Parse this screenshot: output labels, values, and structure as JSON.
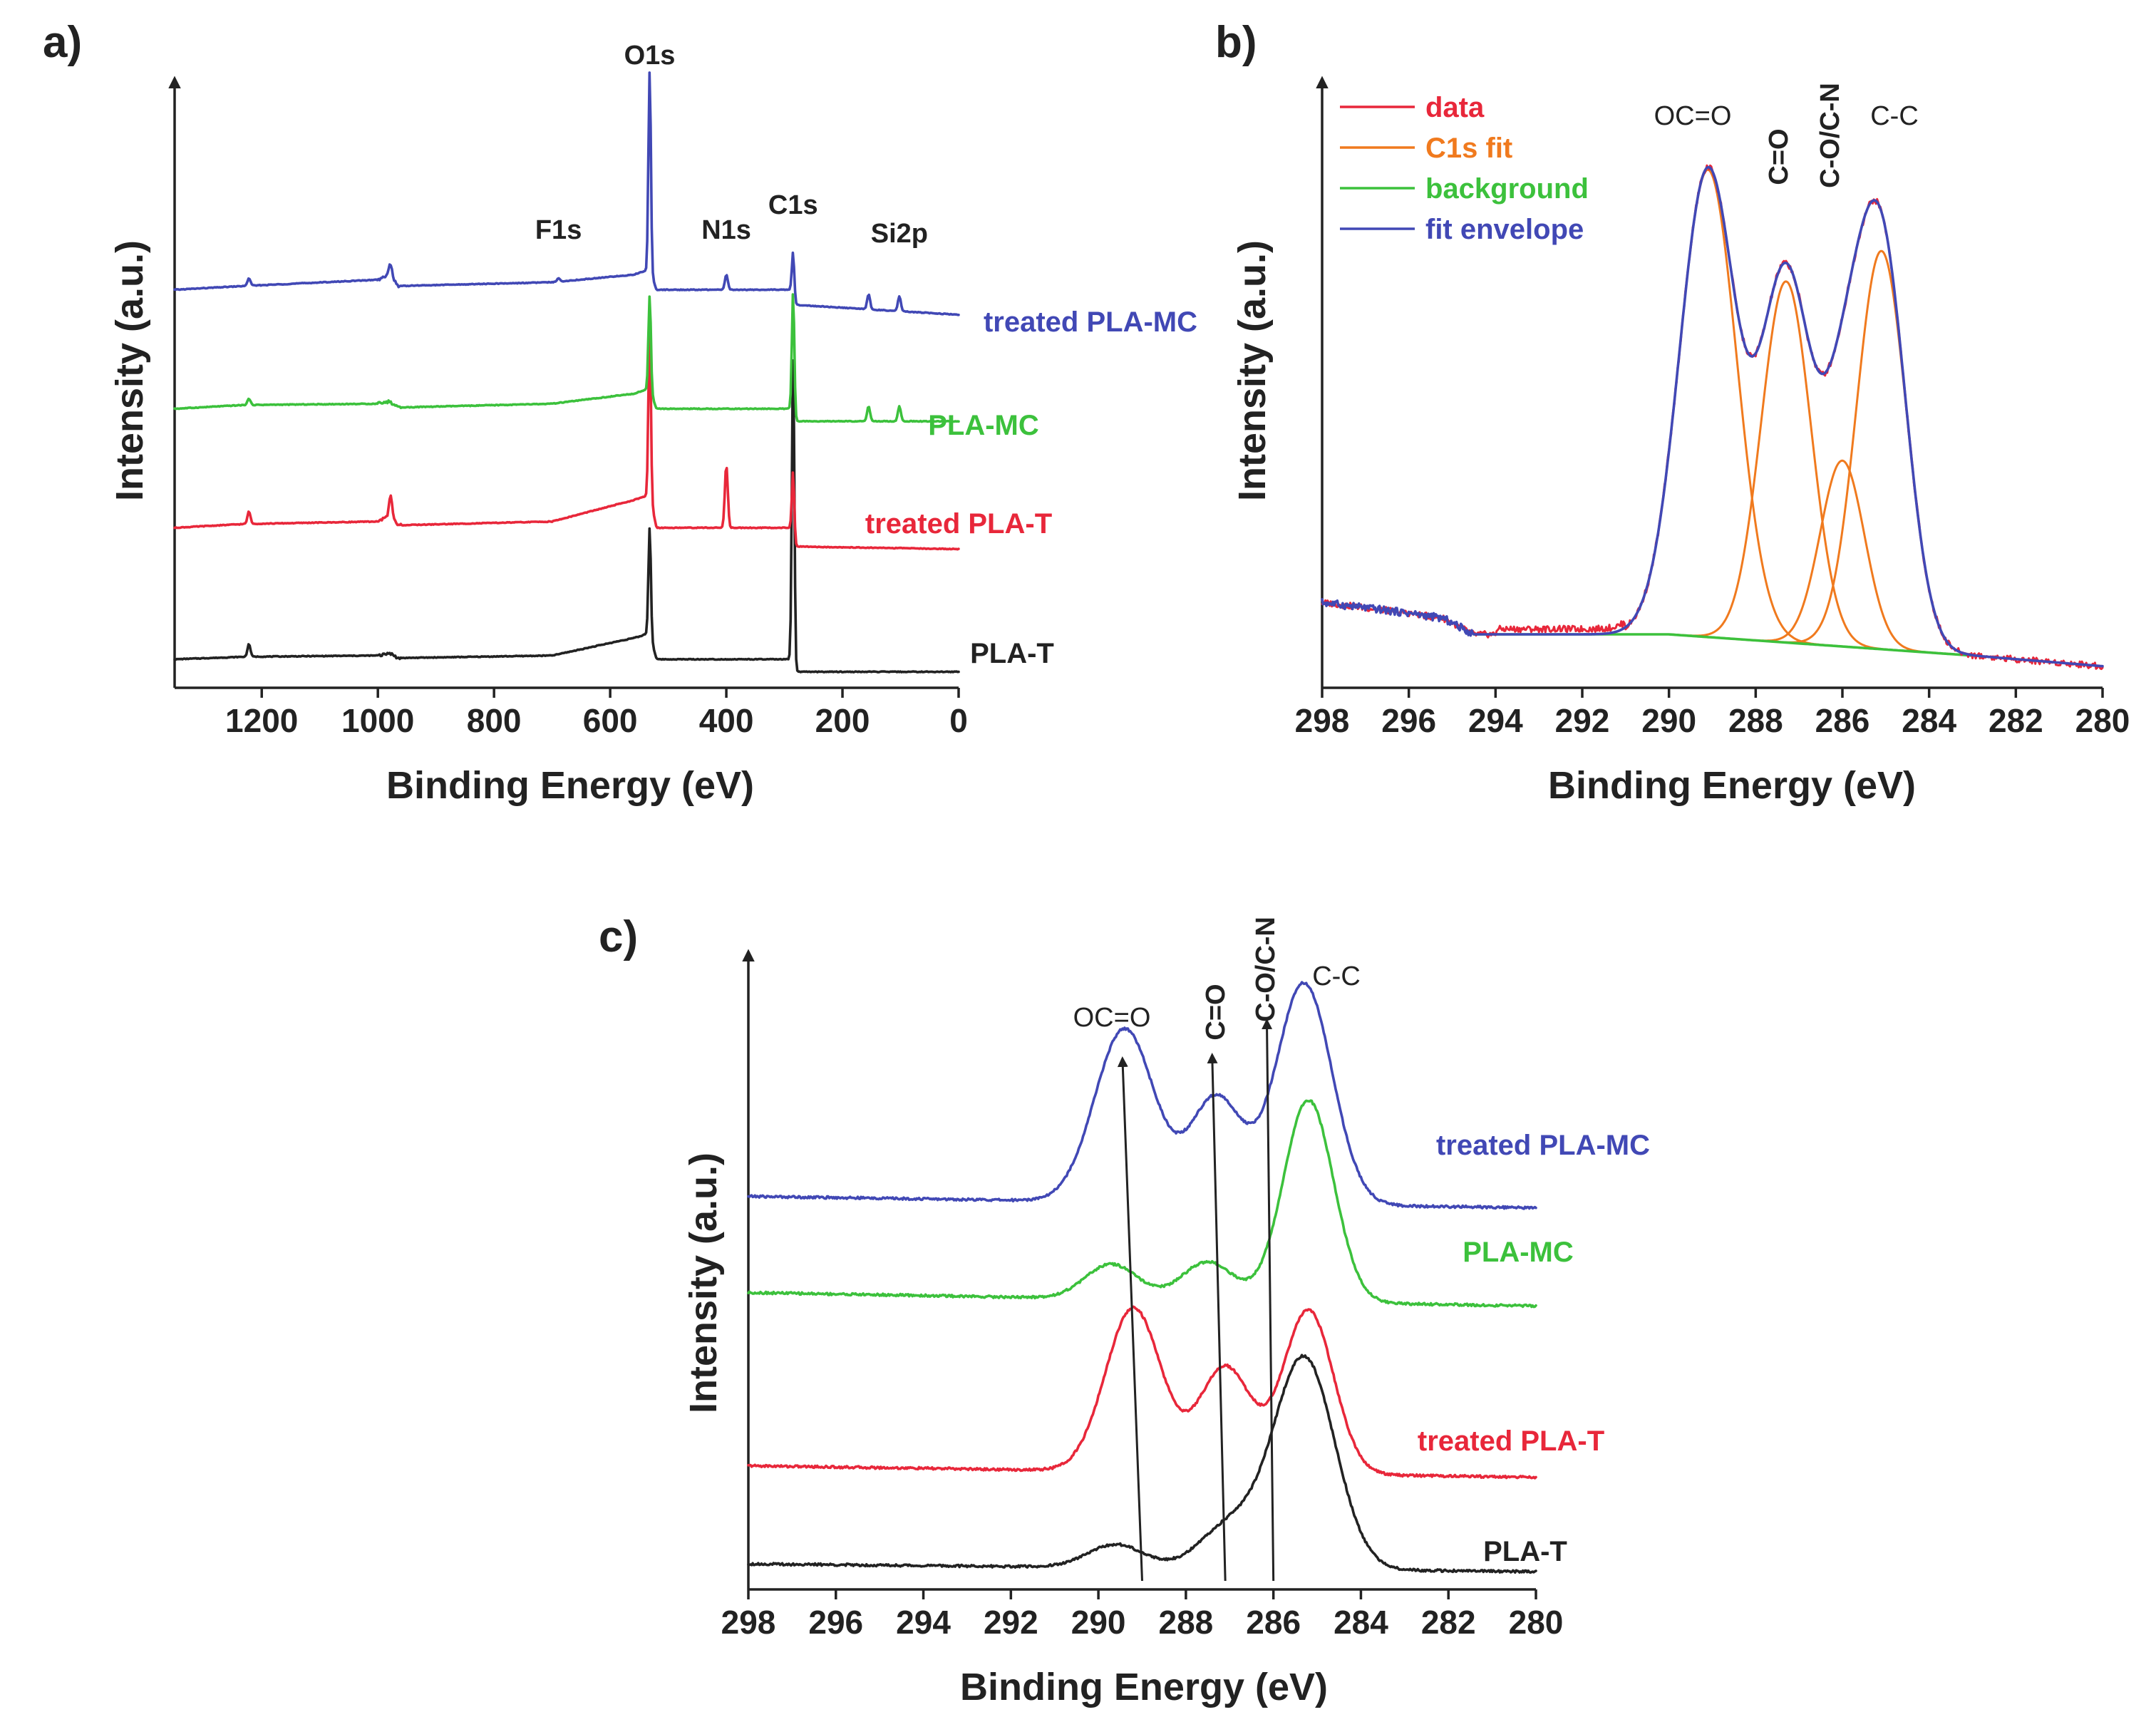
{
  "colors": {
    "pla_t": "#222222",
    "treated_pla_t": "#e8273a",
    "pla_mc": "#3cc13c",
    "treated_pla_mc": "#4148b5",
    "c1s_fit": "#f07a1e",
    "background": "#3cc13c",
    "fit_envelope": "#4148b5",
    "data": "#e8273a"
  },
  "chart_data": [
    {
      "id": "a",
      "panel_label": "a)",
      "type": "line",
      "title": "",
      "xlabel": "Binding Energy (eV)",
      "ylabel": "Intensity (a.u.)",
      "xlim": [
        1350,
        0
      ],
      "xticks": [
        "1200",
        "1000",
        "800",
        "600",
        "400",
        "200",
        "0"
      ],
      "peak_labels": [
        {
          "text": "O1s",
          "x": 532
        },
        {
          "text": "F1s",
          "x": 689
        },
        {
          "text": "N1s",
          "x": 400
        },
        {
          "text": "C1s",
          "x": 285
        },
        {
          "text": "Si2p",
          "x": 102
        }
      ],
      "series": [
        {
          "name": "PLA-T",
          "offset": 0.0,
          "end": 0.0,
          "baseline": [
            [
              1350,
              0.0
            ],
            [
              1230,
              0.02
            ],
            [
              1000,
              0.03
            ],
            [
              980,
              0.05
            ],
            [
              965,
              0.01
            ],
            [
              700,
              0.03
            ],
            [
              550,
              0.18
            ],
            [
              540,
              0.2
            ],
            [
              532,
              0.2
            ],
            [
              520,
              0.0
            ],
            [
              300,
              0.0
            ],
            [
              290,
              0.0
            ],
            [
              283,
              -0.1
            ],
            [
              0,
              -0.1
            ]
          ],
          "peaks": [
            [
              1222,
              0.1
            ],
            [
              532,
              0.85
            ],
            [
              285,
              2.5
            ]
          ]
        },
        {
          "name": "treated PLA-T",
          "offset": 1.05,
          "end": 0.0,
          "baseline": [
            [
              1350,
              0.0
            ],
            [
              1230,
              0.03
            ],
            [
              1000,
              0.05
            ],
            [
              980,
              0.1
            ],
            [
              965,
              0.02
            ],
            [
              700,
              0.05
            ],
            [
              560,
              0.22
            ],
            [
              540,
              0.25
            ],
            [
              532,
              0.25
            ],
            [
              520,
              0.0
            ],
            [
              300,
              0.0
            ],
            [
              290,
              0.0
            ],
            [
              283,
              -0.15
            ],
            [
              0,
              -0.17
            ]
          ],
          "peaks": [
            [
              1222,
              0.1
            ],
            [
              978,
              0.16
            ],
            [
              532,
              1.35
            ],
            [
              400,
              0.5
            ],
            [
              285,
              0.55
            ]
          ]
        },
        {
          "name": "PLA-MC",
          "offset": 2.0,
          "end": 0.0,
          "baseline": [
            [
              1350,
              0.0
            ],
            [
              1230,
              0.03
            ],
            [
              1000,
              0.04
            ],
            [
              980,
              0.06
            ],
            [
              965,
              0.01
            ],
            [
              700,
              0.04
            ],
            [
              560,
              0.12
            ],
            [
              540,
              0.15
            ],
            [
              532,
              0.15
            ],
            [
              520,
              0.0
            ],
            [
              300,
              0.0
            ],
            [
              290,
              0.0
            ],
            [
              283,
              -0.1
            ],
            [
              0,
              -0.1
            ]
          ],
          "peaks": [
            [
              1222,
              0.05
            ],
            [
              532,
              0.75
            ],
            [
              285,
              1.0
            ],
            [
              155,
              0.12
            ],
            [
              102,
              0.12
            ]
          ]
        },
        {
          "name": "treated PLA-MC",
          "offset": 2.95,
          "end": 0.0,
          "baseline": [
            [
              1350,
              0.0
            ],
            [
              1230,
              0.03
            ],
            [
              1000,
              0.08
            ],
            [
              980,
              0.12
            ],
            [
              965,
              0.03
            ],
            [
              700,
              0.06
            ],
            [
              560,
              0.12
            ],
            [
              540,
              0.15
            ],
            [
              532,
              0.15
            ],
            [
              520,
              0.0
            ],
            [
              300,
              0.0
            ],
            [
              290,
              0.0
            ],
            [
              283,
              -0.12
            ],
            [
              0,
              -0.2
            ]
          ],
          "peaks": [
            [
              1222,
              0.06
            ],
            [
              978,
              0.1
            ],
            [
              689,
              0.03
            ],
            [
              532,
              1.6
            ],
            [
              400,
              0.12
            ],
            [
              285,
              0.38
            ],
            [
              155,
              0.12
            ],
            [
              102,
              0.12
            ]
          ]
        }
      ]
    },
    {
      "id": "b",
      "panel_label": "b)",
      "type": "line",
      "title": "",
      "xlabel": "Binding Energy (eV)",
      "ylabel": "Intensity (a.u.)",
      "xlim": [
        298,
        280
      ],
      "ylim": [
        0,
        1.1
      ],
      "xticks": [
        "298",
        "296",
        "294",
        "292",
        "290",
        "288",
        "286",
        "284",
        "282",
        "280"
      ],
      "legend": [
        "data",
        "C1s fit",
        "background",
        "fit envelope"
      ],
      "peak_labels": [
        {
          "text": "OC=O",
          "x": 289.1
        },
        {
          "text": "C=O",
          "x": 287.3
        },
        {
          "text": "C-O/C-N",
          "x": 286.1
        },
        {
          "text": "C-C",
          "x": 284.5
        }
      ],
      "components": [
        {
          "center": 289.1,
          "height": 0.88,
          "fwhm": 1.55
        },
        {
          "center": 287.3,
          "height": 0.68,
          "fwhm": 1.35
        },
        {
          "center": 286.0,
          "height": 0.35,
          "fwhm": 1.2
        },
        {
          "center": 285.1,
          "height": 0.75,
          "fwhm": 1.35
        }
      ],
      "background": [
        [
          294.5,
          0.0
        ],
        [
          290.0,
          0.0
        ],
        [
          283.0,
          -0.04
        ],
        [
          280.0,
          -0.06
        ]
      ],
      "pre_edge": [
        [
          298,
          0.06
        ],
        [
          297,
          0.05
        ],
        [
          296,
          0.04
        ],
        [
          295.2,
          0.03
        ],
        [
          294.5,
          0.0
        ]
      ]
    },
    {
      "id": "c",
      "panel_label": "c)",
      "type": "line",
      "title": "",
      "xlabel": "Binding Energy (eV)",
      "ylabel": "Intensity (a.u.)",
      "xlim": [
        298,
        280
      ],
      "xticks": [
        "298",
        "296",
        "294",
        "292",
        "290",
        "288",
        "286",
        "284",
        "282",
        "280"
      ],
      "peak_labels": [
        {
          "text": "OC=O",
          "x": 289.5
        },
        {
          "text": "C=O",
          "x": 287.3
        },
        {
          "text": "C-O/C-N",
          "x": 286.1
        },
        {
          "text": "C-C",
          "x": 284.5
        }
      ],
      "series": [
        {
          "name": "PLA-T",
          "offset": 0.0,
          "base_start": 0.04,
          "base_end": 0.0,
          "components": [
            [
              289.6,
              0.12,
              1.5
            ],
            [
              287.0,
              0.22,
              1.6
            ],
            [
              285.3,
              1.1,
              1.65
            ]
          ]
        },
        {
          "name": "treated PLA-T",
          "offset": 0.55,
          "base_start": 0.0,
          "base_end": -0.06,
          "components": [
            [
              289.2,
              0.85,
              1.5
            ],
            [
              287.1,
              0.55,
              1.4
            ],
            [
              285.2,
              0.85,
              1.35
            ]
          ]
        },
        {
          "name": "PLA-MC",
          "offset": 1.45,
          "base_start": 0.0,
          "base_end": -0.07,
          "components": [
            [
              289.7,
              0.18,
              1.4
            ],
            [
              287.5,
              0.2,
              1.4
            ],
            [
              285.2,
              1.05,
              1.35
            ]
          ]
        },
        {
          "name": "treated PLA-MC",
          "offset": 1.95,
          "base_start": 0.0,
          "base_end": -0.06,
          "components": [
            [
              289.4,
              0.9,
              1.6
            ],
            [
              287.3,
              0.55,
              1.4
            ],
            [
              285.3,
              1.15,
              1.5
            ]
          ]
        }
      ],
      "arrows": [
        [
          289.0,
          289.45
        ],
        [
          287.1,
          287.4
        ],
        [
          286.0,
          286.15
        ]
      ]
    }
  ]
}
